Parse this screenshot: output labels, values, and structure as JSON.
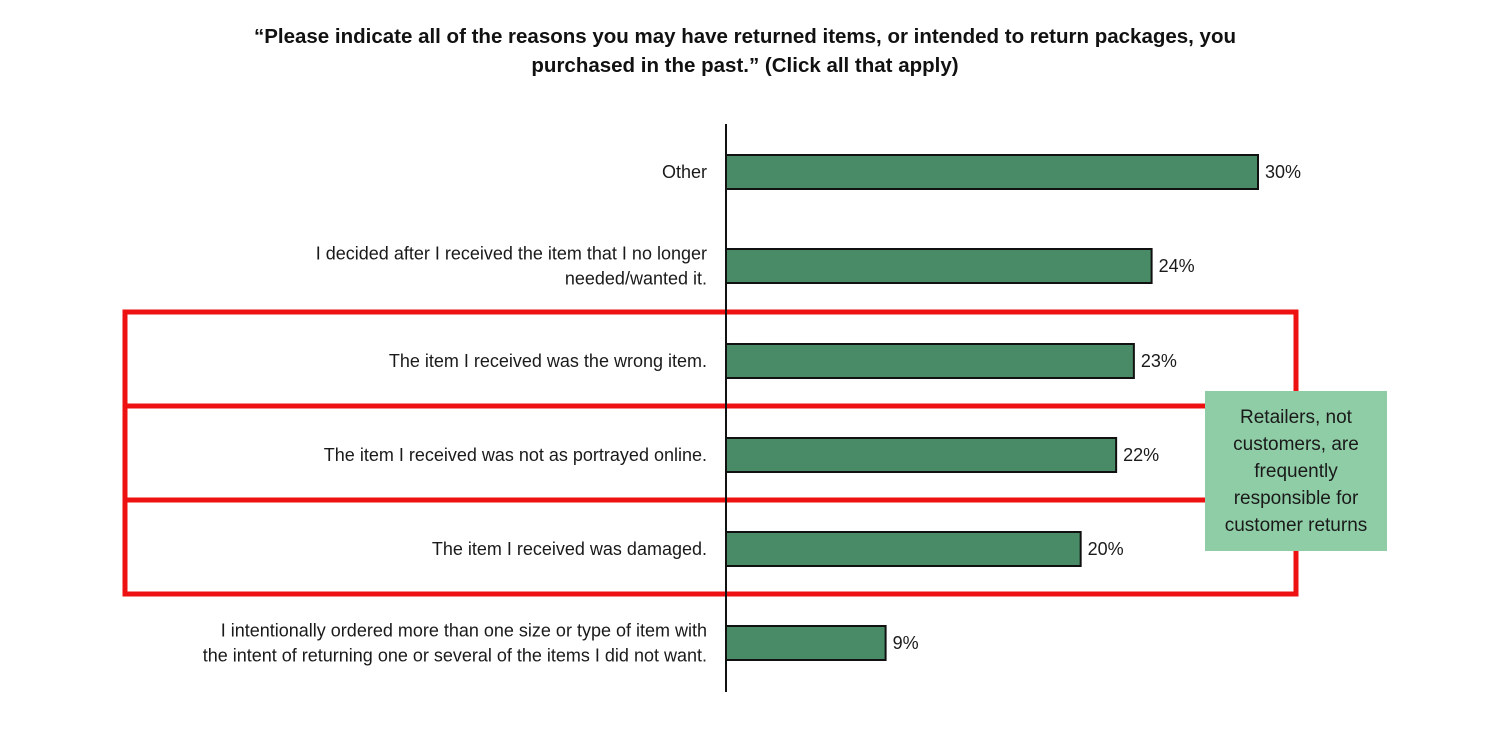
{
  "chart_data": {
    "type": "bar",
    "orientation": "horizontal",
    "title_lines": [
      "“Please indicate all of the reasons you may have returned items, or intended to return packages, you",
      "purchased in the past.” (Click all that apply)"
    ],
    "categories": [
      [
        "Other"
      ],
      [
        "I decided after I received the item that I no longer",
        "needed/wanted it."
      ],
      [
        "The item I received was the wrong item."
      ],
      [
        "The item I received was not as portrayed online."
      ],
      [
        "The item I received was damaged."
      ],
      [
        "I intentionally ordered more than one size or type of item with",
        "the intent of returning one or several of the items I did not want."
      ]
    ],
    "values": [
      30,
      24,
      23,
      22,
      20,
      9
    ],
    "value_labels": [
      "30%",
      "24%",
      "23%",
      "22%",
      "20%",
      "9%"
    ],
    "highlighted": [
      false,
      false,
      true,
      true,
      true,
      false
    ],
    "xlim": [
      0,
      30
    ],
    "grid": false,
    "legend": "none",
    "annotation": "Retailers, not customers, are frequently responsible for customer returns",
    "colors": {
      "bar": "#4a8b67",
      "bar_border": "#111111",
      "highlight_box": "#ee1111",
      "callout_bg": "#8fcda6"
    }
  }
}
